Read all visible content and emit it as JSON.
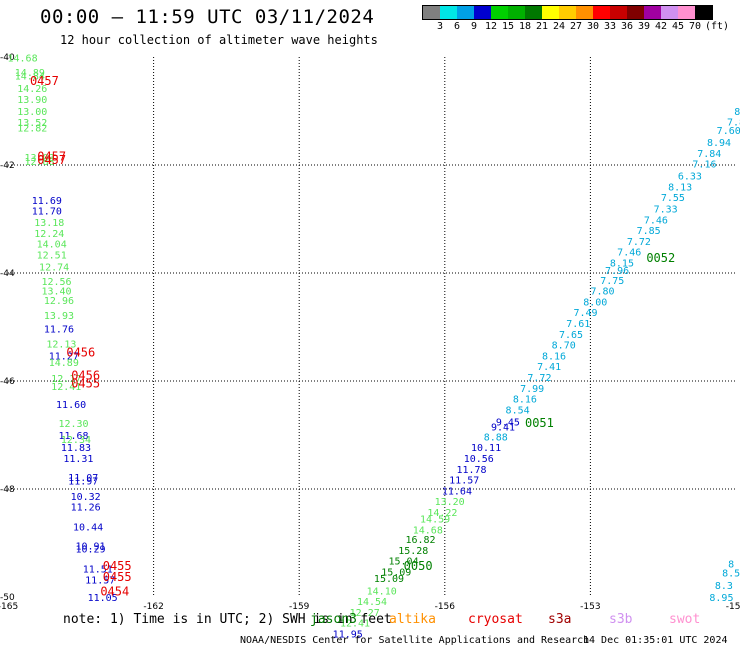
{
  "header": {
    "title": "00:00 – 11:59 UTC 03/11/2024",
    "subtitle": "12 hour collection of altimeter wave heights"
  },
  "legend": {
    "unit": "(ft)",
    "bins": [
      {
        "label": "3",
        "color": "#808080"
      },
      {
        "label": "6",
        "color": "#00e6e6"
      },
      {
        "label": "9",
        "color": "#00a0e6"
      },
      {
        "label": "12",
        "color": "#0000d0"
      },
      {
        "label": "15",
        "color": "#00d000"
      },
      {
        "label": "18",
        "color": "#00b000"
      },
      {
        "label": "21",
        "color": "#007800"
      },
      {
        "label": "24",
        "color": "#ffff00"
      },
      {
        "label": "27",
        "color": "#ffcc00"
      },
      {
        "label": "30",
        "color": "#ff9000"
      },
      {
        "label": "33",
        "color": "#ff0000"
      },
      {
        "label": "36",
        "color": "#c80000"
      },
      {
        "label": "39",
        "color": "#800000"
      },
      {
        "label": "42",
        "color": "#a000a0"
      },
      {
        "label": "45",
        "color": "#d090f0"
      },
      {
        "label": "70",
        "color": "#ff90d0"
      },
      {
        "label": "",
        "color": "#000000"
      }
    ]
  },
  "axes": {
    "lon_ticks": [
      "-165",
      "-162",
      "-159",
      "-156",
      "-153",
      "-150"
    ],
    "lat_ticks": [
      "-40",
      "-42",
      "-44",
      "-46",
      "-48",
      "-50"
    ],
    "lon_range": [
      -165,
      -150
    ],
    "lat_range": [
      -50,
      -40
    ]
  },
  "colors": {
    "light_green": "#5ae65a",
    "blue": "#0000c8",
    "cyan": "#00a8d8",
    "green": "#008000",
    "red": "#e60000"
  },
  "readings": [
    {
      "lon": -164.7,
      "lat": -40.08,
      "v": "14.68",
      "c": "light_green"
    },
    {
      "lon": -164.55,
      "lat": -40.35,
      "v": "14.89",
      "c": "light_green"
    },
    {
      "lon": -164.55,
      "lat": -40.42,
      "v": "14.84",
      "c": "light_green"
    },
    {
      "lon": -164.5,
      "lat": -40.65,
      "v": "14.26",
      "c": "light_green"
    },
    {
      "lon": -164.5,
      "lat": -40.85,
      "v": "13.90",
      "c": "light_green"
    },
    {
      "lon": -164.5,
      "lat": -41.07,
      "v": "13.00",
      "c": "light_green"
    },
    {
      "lon": -164.5,
      "lat": -41.28,
      "v": "13.52",
      "c": "light_green"
    },
    {
      "lon": -164.5,
      "lat": -41.38,
      "v": "12.82",
      "c": "light_green"
    },
    {
      "lon": -164.35,
      "lat": -41.93,
      "v": "13.03",
      "c": "light_green"
    },
    {
      "lon": -164.35,
      "lat": -42.0,
      "v": "12.88",
      "c": "light_green"
    },
    {
      "lon": -164.2,
      "lat": -42.72,
      "v": "11.69",
      "c": "blue"
    },
    {
      "lon": -164.2,
      "lat": -42.92,
      "v": "11.70",
      "c": "blue"
    },
    {
      "lon": -164.15,
      "lat": -43.13,
      "v": "13.18",
      "c": "light_green"
    },
    {
      "lon": -164.15,
      "lat": -43.33,
      "v": "12.24",
      "c": "light_green"
    },
    {
      "lon": -164.1,
      "lat": -43.53,
      "v": "14.04",
      "c": "light_green"
    },
    {
      "lon": -164.1,
      "lat": -43.73,
      "v": "12.51",
      "c": "light_green"
    },
    {
      "lon": -164.05,
      "lat": -43.95,
      "v": "12.74",
      "c": "light_green"
    },
    {
      "lon": -164.0,
      "lat": -44.22,
      "v": "12.56",
      "c": "light_green"
    },
    {
      "lon": -164.0,
      "lat": -44.4,
      "v": "13.40",
      "c": "light_green"
    },
    {
      "lon": -163.95,
      "lat": -44.57,
      "v": "12.96",
      "c": "light_green"
    },
    {
      "lon": -163.95,
      "lat": -44.85,
      "v": "13.93",
      "c": "light_green"
    },
    {
      "lon": -163.95,
      "lat": -45.1,
      "v": "11.76",
      "c": "blue"
    },
    {
      "lon": -163.9,
      "lat": -45.38,
      "v": "12.13",
      "c": "light_green"
    },
    {
      "lon": -163.85,
      "lat": -45.6,
      "v": "11.27",
      "c": "blue"
    },
    {
      "lon": -163.85,
      "lat": -45.72,
      "v": "14.89",
      "c": "light_green"
    },
    {
      "lon": -163.8,
      "lat": -46.02,
      "v": "12.17",
      "c": "light_green"
    },
    {
      "lon": -163.8,
      "lat": -46.17,
      "v": "12.41",
      "c": "light_green"
    },
    {
      "lon": -163.7,
      "lat": -46.5,
      "v": "11.60",
      "c": "blue"
    },
    {
      "lon": -163.65,
      "lat": -46.85,
      "v": "12.30",
      "c": "light_green"
    },
    {
      "lon": -163.65,
      "lat": -47.07,
      "v": "11.68",
      "c": "blue"
    },
    {
      "lon": -163.6,
      "lat": -47.15,
      "v": "12.34",
      "c": "light_green"
    },
    {
      "lon": -163.6,
      "lat": -47.3,
      "v": "11.83",
      "c": "blue"
    },
    {
      "lon": -163.55,
      "lat": -47.5,
      "v": "11.31",
      "c": "blue"
    },
    {
      "lon": -163.45,
      "lat": -47.85,
      "v": "11.07",
      "c": "blue"
    },
    {
      "lon": -163.45,
      "lat": -47.92,
      "v": "11.97",
      "c": "blue"
    },
    {
      "lon": -163.4,
      "lat": -48.2,
      "v": "10.32",
      "c": "blue"
    },
    {
      "lon": -163.4,
      "lat": -48.4,
      "v": "11.26",
      "c": "blue"
    },
    {
      "lon": -163.35,
      "lat": -48.77,
      "v": "10.44",
      "c": "blue"
    },
    {
      "lon": -163.3,
      "lat": -49.12,
      "v": "10.91",
      "c": "blue"
    },
    {
      "lon": -163.3,
      "lat": -49.18,
      "v": "10.29",
      "c": "blue"
    },
    {
      "lon": -163.15,
      "lat": -49.55,
      "v": "11.51",
      "c": "blue"
    },
    {
      "lon": -163.1,
      "lat": -49.75,
      "v": "11.57",
      "c": "blue"
    },
    {
      "lon": -163.05,
      "lat": -50.07,
      "v": "11.05",
      "c": "blue"
    },
    {
      "lon": -149.65,
      "lat": -40.85,
      "v": "7.",
      "c": "cyan"
    },
    {
      "lon": -149.85,
      "lat": -41.07,
      "v": "8.1",
      "c": "cyan"
    },
    {
      "lon": -150.0,
      "lat": -41.27,
      "v": "7.8",
      "c": "cyan"
    },
    {
      "lon": -150.15,
      "lat": -41.43,
      "v": "7.60",
      "c": "cyan"
    },
    {
      "lon": -150.35,
      "lat": -41.65,
      "v": "8.94",
      "c": "cyan"
    },
    {
      "lon": -150.55,
      "lat": -41.85,
      "v": "7.84",
      "c": "cyan"
    },
    {
      "lon": -150.65,
      "lat": -42.05,
      "v": "7.16",
      "c": "cyan"
    },
    {
      "lon": -150.95,
      "lat": -42.27,
      "v": "6.33",
      "c": "cyan"
    },
    {
      "lon": -151.15,
      "lat": -42.47,
      "v": "8.13",
      "c": "cyan"
    },
    {
      "lon": -151.3,
      "lat": -42.67,
      "v": "7.55",
      "c": "cyan"
    },
    {
      "lon": -151.45,
      "lat": -42.88,
      "v": "7.33",
      "c": "cyan"
    },
    {
      "lon": -151.65,
      "lat": -43.08,
      "v": "7.46",
      "c": "cyan"
    },
    {
      "lon": -151.8,
      "lat": -43.28,
      "v": "7.85",
      "c": "cyan"
    },
    {
      "lon": -152.0,
      "lat": -43.48,
      "v": "7.72",
      "c": "cyan"
    },
    {
      "lon": -152.2,
      "lat": -43.68,
      "v": "7.46",
      "c": "cyan"
    },
    {
      "lon": -152.35,
      "lat": -43.88,
      "v": "8.15",
      "c": "cyan"
    },
    {
      "lon": -152.45,
      "lat": -44.02,
      "v": "7.96",
      "c": "cyan"
    },
    {
      "lon": -152.55,
      "lat": -44.2,
      "v": "7.75",
      "c": "cyan"
    },
    {
      "lon": -152.75,
      "lat": -44.4,
      "v": "7.80",
      "c": "cyan"
    },
    {
      "lon": -152.9,
      "lat": -44.6,
      "v": "8.00",
      "c": "cyan"
    },
    {
      "lon": -153.1,
      "lat": -44.8,
      "v": "7.49",
      "c": "cyan"
    },
    {
      "lon": -153.25,
      "lat": -45.0,
      "v": "7.61",
      "c": "cyan"
    },
    {
      "lon": -153.4,
      "lat": -45.2,
      "v": "7.65",
      "c": "cyan"
    },
    {
      "lon": -153.55,
      "lat": -45.4,
      "v": "8.70",
      "c": "cyan"
    },
    {
      "lon": -153.75,
      "lat": -45.6,
      "v": "8.16",
      "c": "cyan"
    },
    {
      "lon": -153.85,
      "lat": -45.8,
      "v": "7.41",
      "c": "cyan"
    },
    {
      "lon": -154.05,
      "lat": -46.0,
      "v": "7.72",
      "c": "cyan"
    },
    {
      "lon": -154.2,
      "lat": -46.2,
      "v": "7.99",
      "c": "cyan"
    },
    {
      "lon": -154.35,
      "lat": -46.4,
      "v": "8.16",
      "c": "cyan"
    },
    {
      "lon": -154.5,
      "lat": -46.6,
      "v": "8.54",
      "c": "cyan"
    },
    {
      "lon": -154.7,
      "lat": -46.82,
      "v": "9.45",
      "c": "blue"
    },
    {
      "lon": -154.8,
      "lat": -46.92,
      "v": "9.41",
      "c": "blue"
    },
    {
      "lon": -154.95,
      "lat": -47.1,
      "v": "8.88",
      "c": "cyan"
    },
    {
      "lon": -155.15,
      "lat": -47.3,
      "v": "10.11",
      "c": "blue"
    },
    {
      "lon": -155.3,
      "lat": -47.5,
      "v": "10.56",
      "c": "blue"
    },
    {
      "lon": -155.45,
      "lat": -47.7,
      "v": "11.78",
      "c": "blue"
    },
    {
      "lon": -155.6,
      "lat": -47.9,
      "v": "11.57",
      "c": "blue"
    },
    {
      "lon": -155.75,
      "lat": -48.1,
      "v": "11.64",
      "c": "blue"
    },
    {
      "lon": -155.9,
      "lat": -48.3,
      "v": "13.20",
      "c": "light_green"
    },
    {
      "lon": -156.05,
      "lat": -48.5,
      "v": "14.22",
      "c": "light_green"
    },
    {
      "lon": -156.2,
      "lat": -48.62,
      "v": "14.59",
      "c": "light_green"
    },
    {
      "lon": -156.35,
      "lat": -48.82,
      "v": "14.68",
      "c": "light_green"
    },
    {
      "lon": -156.5,
      "lat": -49.0,
      "v": "16.82",
      "c": "green"
    },
    {
      "lon": -156.65,
      "lat": -49.2,
      "v": "15.28",
      "c": "green"
    },
    {
      "lon": -156.85,
      "lat": -49.4,
      "v": "15.04",
      "c": "green"
    },
    {
      "lon": -157.0,
      "lat": -49.6,
      "v": "15.09",
      "c": "green"
    },
    {
      "lon": -157.15,
      "lat": -49.72,
      "v": "15.09",
      "c": "green"
    },
    {
      "lon": -157.3,
      "lat": -49.95,
      "v": "14.10",
      "c": "light_green"
    },
    {
      "lon": -157.5,
      "lat": -50.15,
      "v": "14.54",
      "c": "light_green"
    },
    {
      "lon": -157.65,
      "lat": -50.35,
      "v": "12.27",
      "c": "light_green"
    },
    {
      "lon": -157.85,
      "lat": -50.55,
      "v": "12.41",
      "c": "light_green"
    },
    {
      "lon": -158.0,
      "lat": -50.75,
      "v": "11.95",
      "c": "blue"
    },
    {
      "lon": -150.1,
      "lat": -49.45,
      "v": "8",
      "c": "cyan"
    },
    {
      "lon": -150.1,
      "lat": -49.62,
      "v": "8.5",
      "c": "cyan"
    },
    {
      "lon": -150.25,
      "lat": -49.85,
      "v": "8.3",
      "c": "cyan"
    },
    {
      "lon": -150.3,
      "lat": -50.07,
      "v": "8.95",
      "c": "cyan"
    }
  ],
  "passes": [
    {
      "lon": -164.25,
      "lat": -40.52,
      "v": "0457",
      "c": "red"
    },
    {
      "lon": -164.1,
      "lat": -41.92,
      "v": "0457",
      "c": "red"
    },
    {
      "lon": -164.1,
      "lat": -41.98,
      "v": "0457",
      "c": "red"
    },
    {
      "lon": -163.5,
      "lat": -45.55,
      "v": "0456",
      "c": "red"
    },
    {
      "lon": -163.4,
      "lat": -45.97,
      "v": "0456",
      "c": "red"
    },
    {
      "lon": -163.4,
      "lat": -46.12,
      "v": "0455",
      "c": "red"
    },
    {
      "lon": -162.75,
      "lat": -49.5,
      "v": "0455",
      "c": "red"
    },
    {
      "lon": -162.75,
      "lat": -49.7,
      "v": "0455",
      "c": "red"
    },
    {
      "lon": -162.8,
      "lat": -49.97,
      "v": "0454",
      "c": "red"
    },
    {
      "lon": -151.55,
      "lat": -43.8,
      "v": "0052",
      "c": "green"
    },
    {
      "lon": -154.05,
      "lat": -46.85,
      "v": "0051",
      "c": "green"
    },
    {
      "lon": -156.55,
      "lat": -49.5,
      "v": "0050",
      "c": "green"
    }
  ],
  "footer": {
    "note": "note: 1) Time is in UTC; 2) SWH is in feet",
    "satellites": [
      {
        "name": "jason3",
        "color": "#007800"
      },
      {
        "name": "altika",
        "color": "#ff9000"
      },
      {
        "name": "cryosat",
        "color": "#e60000"
      },
      {
        "name": "s3a",
        "color": "#a00000"
      },
      {
        "name": "s3b",
        "color": "#d090f0"
      },
      {
        "name": "swot",
        "color": "#ff90d0"
      }
    ],
    "credit": "NOAA/NESDIS Center for Satellite Applications and Research",
    "generated": "14 Dec 01:35:01 UTC 2024"
  }
}
